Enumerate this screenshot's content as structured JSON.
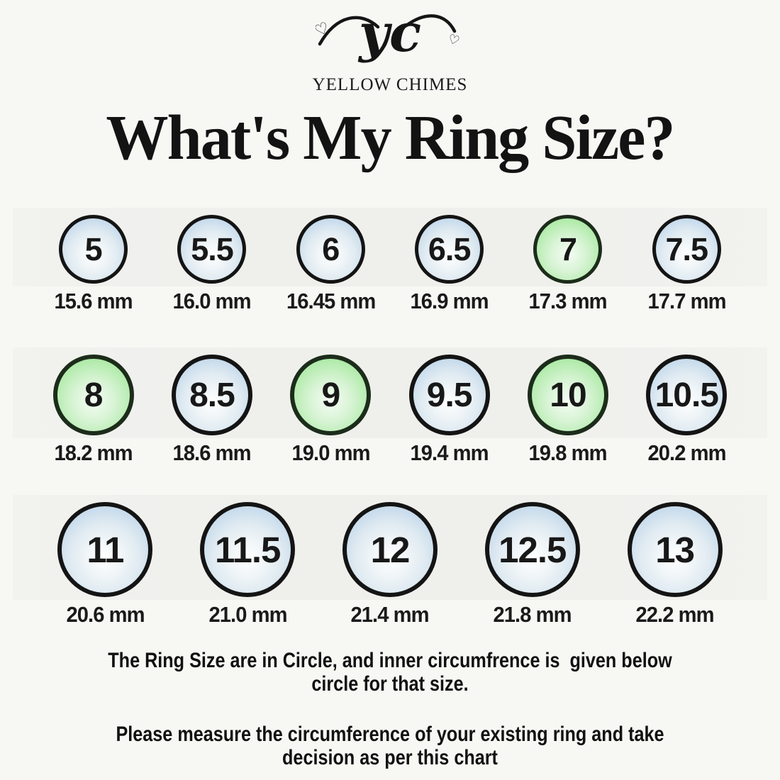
{
  "brand": {
    "monogram": "yc",
    "name": "YELLOW CHIMES"
  },
  "title": "What's My Ring Size?",
  "rows": [
    {
      "cells": [
        {
          "size": "5",
          "diameter": "15.6 mm",
          "color": "blue"
        },
        {
          "size": "5.5",
          "diameter": "16.0 mm",
          "color": "blue"
        },
        {
          "size": "6",
          "diameter": "16.45 mm",
          "color": "blue"
        },
        {
          "size": "6.5",
          "diameter": "16.9 mm",
          "color": "blue"
        },
        {
          "size": "7",
          "diameter": "17.3 mm",
          "color": "green"
        },
        {
          "size": "7.5",
          "diameter": "17.7 mm",
          "color": "blue"
        }
      ]
    },
    {
      "cells": [
        {
          "size": "8",
          "diameter": "18.2 mm",
          "color": "green"
        },
        {
          "size": "8.5",
          "diameter": "18.6 mm",
          "color": "blue"
        },
        {
          "size": "9",
          "diameter": "19.0 mm",
          "color": "green"
        },
        {
          "size": "9.5",
          "diameter": "19.4 mm",
          "color": "blue"
        },
        {
          "size": "10",
          "diameter": "19.8 mm",
          "color": "green"
        },
        {
          "size": "10.5",
          "diameter": "20.2 mm",
          "color": "blue"
        }
      ]
    },
    {
      "cells": [
        {
          "size": "11",
          "diameter": "20.6 mm",
          "color": "blue"
        },
        {
          "size": "11.5",
          "diameter": "21.0 mm",
          "color": "blue"
        },
        {
          "size": "12",
          "diameter": "21.4 mm",
          "color": "blue"
        },
        {
          "size": "12.5",
          "diameter": "21.8 mm",
          "color": "blue"
        },
        {
          "size": "13",
          "diameter": "22.2 mm",
          "color": "blue"
        }
      ]
    }
  ],
  "notes": [
    {
      "lines": [
        "The Ring Size are in Circle, and inner circumfrence is  given below",
        "circle for that size."
      ]
    },
    {
      "lines": [
        "Please measure the circumference of your existing ring and take",
        "decision as per this chart"
      ]
    }
  ],
  "colors": {
    "background": "#f7f7f4",
    "outline": "#141414",
    "text": "#161616",
    "blue_edge": "#b3cbdb",
    "blue_mid": "#dfeaf1",
    "green_edge": "#8ee28b",
    "green_mid": "#d9f4d6",
    "highlight_center": "#ffffff"
  }
}
